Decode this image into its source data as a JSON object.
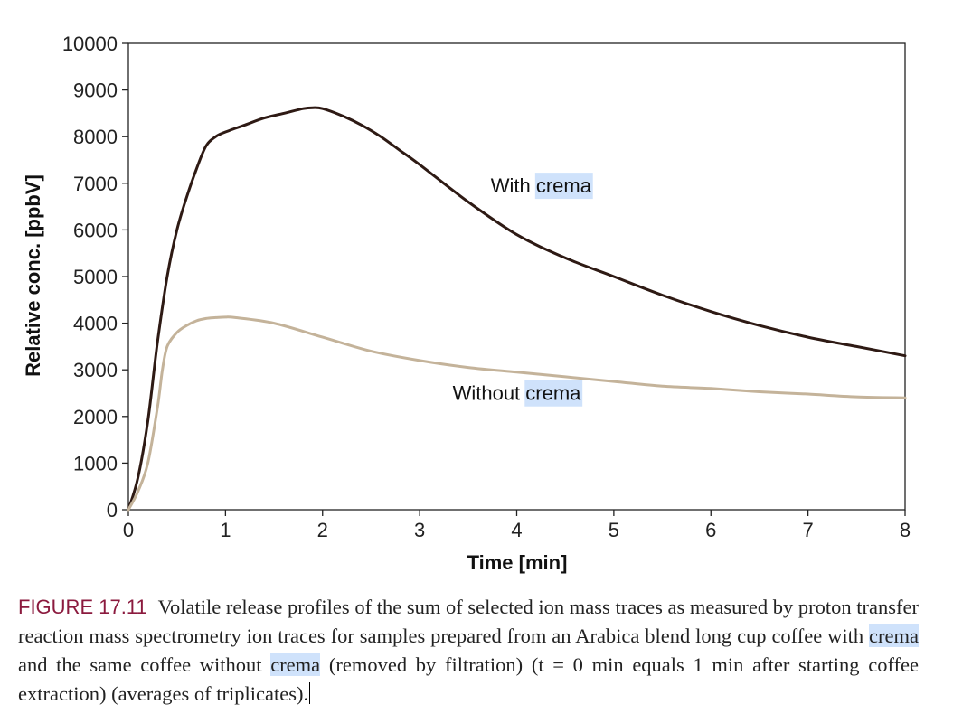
{
  "chart_data": {
    "type": "line",
    "xlabel": "Time [min]",
    "ylabel": "Relative conc. [ppbV]",
    "xlim": [
      0,
      8
    ],
    "ylim": [
      0,
      10000
    ],
    "x_ticks": [
      "0",
      "1",
      "2",
      "3",
      "4",
      "5",
      "6",
      "7",
      "8"
    ],
    "y_ticks": [
      "0",
      "1000",
      "2000",
      "3000",
      "4000",
      "5000",
      "6000",
      "7000",
      "8000",
      "9000",
      "10000"
    ],
    "grid": false,
    "legend": "none",
    "series": [
      {
        "name_parts": [
          "With ",
          "crema"
        ],
        "color": "#2e1a14",
        "x": [
          0,
          0.1,
          0.2,
          0.3,
          0.4,
          0.5,
          0.6,
          0.7,
          0.8,
          0.9,
          1.0,
          1.2,
          1.4,
          1.6,
          1.8,
          1.9,
          2.0,
          2.2,
          2.4,
          2.6,
          2.8,
          3.0,
          3.5,
          4.0,
          4.5,
          5.0,
          5.5,
          6.0,
          6.5,
          7.0,
          7.5,
          8.0
        ],
        "y": [
          0,
          700,
          1900,
          3600,
          5000,
          6000,
          6700,
          7300,
          7800,
          8000,
          8100,
          8250,
          8400,
          8500,
          8600,
          8620,
          8600,
          8450,
          8250,
          8000,
          7700,
          7400,
          6600,
          5900,
          5400,
          5000,
          4600,
          4250,
          3950,
          3700,
          3500,
          3300
        ]
      },
      {
        "name_parts": [
          "Without ",
          "crema"
        ],
        "color": "#c4b39a",
        "x": [
          0,
          0.1,
          0.2,
          0.3,
          0.35,
          0.4,
          0.5,
          0.6,
          0.7,
          0.8,
          0.9,
          1.0,
          1.1,
          1.5,
          2.0,
          2.5,
          3.0,
          3.5,
          4.0,
          4.5,
          5.0,
          5.5,
          6.0,
          6.5,
          7.0,
          7.5,
          8.0
        ],
        "y": [
          0,
          400,
          1000,
          2200,
          3000,
          3500,
          3800,
          3950,
          4050,
          4100,
          4120,
          4130,
          4120,
          4000,
          3700,
          3400,
          3200,
          3050,
          2950,
          2850,
          2750,
          2650,
          2600,
          2530,
          2480,
          2420,
          2400
        ]
      }
    ]
  },
  "caption": {
    "label": "FIGURE 17.11",
    "text_1": "Volatile release profiles of the sum of selected ion mass traces as measured by proton transfer reaction mass spectrometry ion traces for samples prepared from an Arabica blend long cup coffee with ",
    "highlight_1": "crema",
    "text_2": " and the same coffee without ",
    "highlight_2": "crema",
    "text_3": " (removed by filtration) (t = 0 min equals 1 min after starting coffee extraction) (averages of triplicates)."
  },
  "colors": {
    "highlight": "#cfe2fb",
    "figure_label": "#8b1a3e"
  }
}
